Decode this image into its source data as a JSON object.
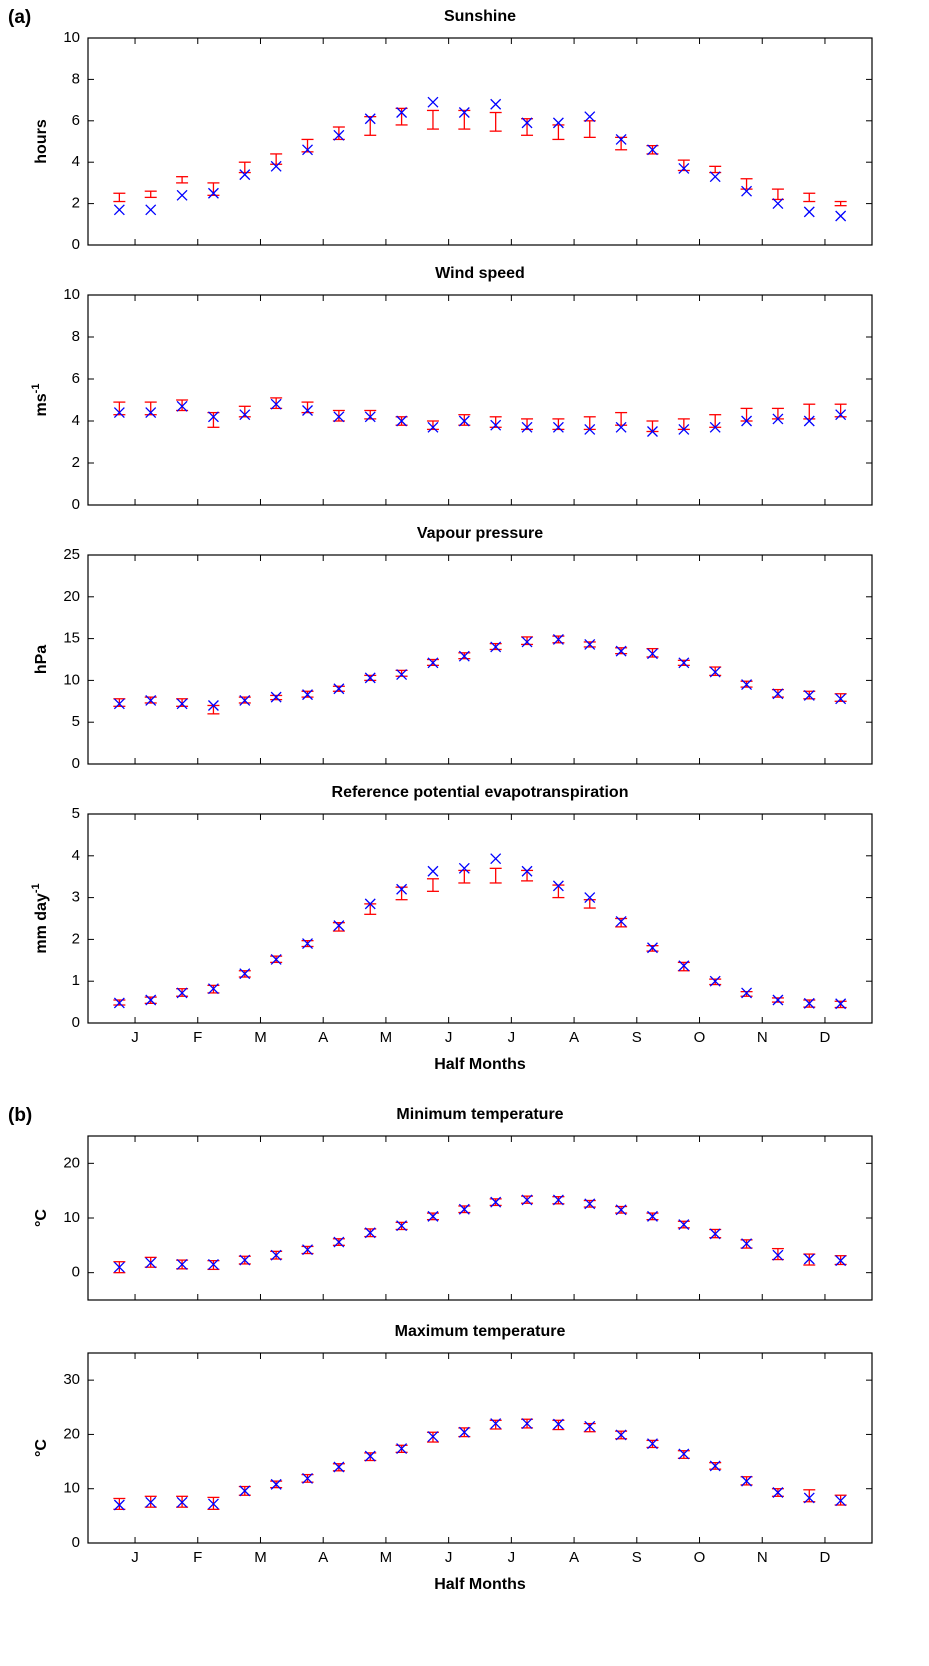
{
  "chart_data": [
    {
      "type": "errorbar",
      "panel_label": "(a)",
      "title": "Sunshine",
      "ylabel": "hours",
      "x": [
        1,
        2,
        3,
        4,
        5,
        6,
        7,
        8,
        9,
        10,
        11,
        12,
        13,
        14,
        15,
        16,
        17,
        18,
        19,
        20,
        21,
        22,
        23,
        24
      ],
      "xlim": [
        0,
        25
      ],
      "xticks": [
        1.5,
        3.5,
        5.5,
        7.5,
        9.5,
        11.5,
        13.5,
        15.5,
        17.5,
        19.5,
        21.5,
        23.5
      ],
      "ylim": [
        0,
        10
      ],
      "yticks": [
        0,
        2,
        4,
        6,
        8,
        10
      ],
      "marker_color": "#0000ff",
      "bar_color": "#ff0000",
      "values": [
        1.7,
        1.7,
        2.4,
        2.5,
        3.4,
        3.8,
        4.6,
        5.3,
        6.1,
        6.4,
        6.9,
        6.4,
        6.8,
        5.9,
        5.9,
        6.2,
        5.1,
        4.6,
        3.7,
        3.3,
        2.6,
        2.0,
        1.6,
        1.4
      ],
      "low": [
        2.1,
        2.3,
        3.0,
        2.4,
        3.5,
        3.9,
        4.5,
        5.1,
        5.3,
        5.8,
        5.6,
        5.6,
        5.5,
        5.3,
        5.1,
        5.2,
        4.6,
        4.4,
        3.6,
        3.5,
        2.7,
        2.2,
        2.1,
        1.9
      ],
      "high": [
        2.5,
        2.6,
        3.3,
        3.0,
        4.0,
        4.4,
        5.1,
        5.7,
        6.2,
        6.6,
        6.5,
        6.5,
        6.4,
        6.1,
        5.8,
        6.0,
        5.2,
        4.8,
        4.1,
        3.8,
        3.2,
        2.7,
        2.5,
        2.1
      ]
    },
    {
      "type": "errorbar",
      "title": "Wind speed",
      "ylabel": "ms",
      "ylabel_sup": "-1",
      "x": [
        1,
        2,
        3,
        4,
        5,
        6,
        7,
        8,
        9,
        10,
        11,
        12,
        13,
        14,
        15,
        16,
        17,
        18,
        19,
        20,
        21,
        22,
        23,
        24
      ],
      "xlim": [
        0,
        25
      ],
      "xticks": [
        1.5,
        3.5,
        5.5,
        7.5,
        9.5,
        11.5,
        13.5,
        15.5,
        17.5,
        19.5,
        21.5,
        23.5
      ],
      "ylim": [
        0,
        10
      ],
      "yticks": [
        0,
        2,
        4,
        6,
        8,
        10
      ],
      "marker_color": "#0000ff",
      "bar_color": "#ff0000",
      "values": [
        4.4,
        4.4,
        4.7,
        4.2,
        4.3,
        4.8,
        4.5,
        4.2,
        4.2,
        4.0,
        3.7,
        4.0,
        3.8,
        3.7,
        3.7,
        3.6,
        3.7,
        3.5,
        3.6,
        3.7,
        4.0,
        4.1,
        4.0,
        4.3
      ],
      "low": [
        4.3,
        4.3,
        4.5,
        3.7,
        4.2,
        4.6,
        4.4,
        4.0,
        4.1,
        3.8,
        3.6,
        3.8,
        3.7,
        3.6,
        3.6,
        3.6,
        3.8,
        3.5,
        3.6,
        3.7,
        4.0,
        4.1,
        4.1,
        4.2
      ],
      "high": [
        4.9,
        4.9,
        5.0,
        4.4,
        4.7,
        5.1,
        4.9,
        4.5,
        4.5,
        4.2,
        4.0,
        4.3,
        4.2,
        4.1,
        4.1,
        4.2,
        4.4,
        4.0,
        4.1,
        4.3,
        4.6,
        4.6,
        4.8,
        4.8
      ]
    },
    {
      "type": "errorbar",
      "title": "Vapour pressure",
      "ylabel": "hPa",
      "x": [
        1,
        2,
        3,
        4,
        5,
        6,
        7,
        8,
        9,
        10,
        11,
        12,
        13,
        14,
        15,
        16,
        17,
        18,
        19,
        20,
        21,
        22,
        23,
        24
      ],
      "xlim": [
        0,
        25
      ],
      "xticks": [
        1.5,
        3.5,
        5.5,
        7.5,
        9.5,
        11.5,
        13.5,
        15.5,
        17.5,
        19.5,
        21.5,
        23.5
      ],
      "ylim": [
        0,
        25
      ],
      "yticks": [
        0,
        5,
        10,
        15,
        20,
        25
      ],
      "marker_color": "#0000ff",
      "bar_color": "#ff0000",
      "values": [
        7.2,
        7.6,
        7.2,
        7.0,
        7.6,
        8.0,
        8.3,
        9.0,
        10.3,
        10.7,
        12.1,
        12.9,
        14.0,
        14.6,
        14.9,
        14.3,
        13.5,
        13.2,
        12.1,
        11.0,
        9.5,
        8.4,
        8.2,
        7.8
      ],
      "low": [
        6.9,
        7.3,
        6.9,
        6.0,
        7.3,
        7.7,
        8.0,
        8.7,
        10.0,
        10.5,
        11.8,
        12.6,
        13.7,
        14.3,
        14.5,
        14.0,
        13.2,
        12.8,
        11.8,
        10.6,
        9.2,
        8.0,
        7.8,
        7.5
      ],
      "high": [
        7.8,
        8.0,
        7.8,
        7.0,
        8.0,
        8.2,
        8.7,
        9.3,
        10.6,
        11.2,
        12.5,
        13.3,
        14.4,
        15.2,
        15.3,
        14.6,
        13.9,
        13.8,
        12.4,
        11.6,
        9.9,
        8.9,
        8.7,
        8.4
      ]
    },
    {
      "type": "errorbar",
      "title": "Reference potential evapotranspiration",
      "ylabel": "mm day",
      "ylabel_sup": "-1",
      "xlabel": "Half Months",
      "x": [
        1,
        2,
        3,
        4,
        5,
        6,
        7,
        8,
        9,
        10,
        11,
        12,
        13,
        14,
        15,
        16,
        17,
        18,
        19,
        20,
        21,
        22,
        23,
        24
      ],
      "xlim": [
        0,
        25
      ],
      "xticks": [
        {
          "value": 1.5,
          "label": "J"
        },
        {
          "value": 3.5,
          "label": "F"
        },
        {
          "value": 5.5,
          "label": "M"
        },
        {
          "value": 7.5,
          "label": "A"
        },
        {
          "value": 9.5,
          "label": "M"
        },
        {
          "value": 11.5,
          "label": "J"
        },
        {
          "value": 13.5,
          "label": "J"
        },
        {
          "value": 15.5,
          "label": "A"
        },
        {
          "value": 17.5,
          "label": "S"
        },
        {
          "value": 19.5,
          "label": "O"
        },
        {
          "value": 21.5,
          "label": "N"
        },
        {
          "value": 23.5,
          "label": "D"
        }
      ],
      "ylim": [
        0,
        5
      ],
      "yticks": [
        0,
        1,
        2,
        3,
        4,
        5
      ],
      "marker_color": "#0000ff",
      "bar_color": "#ff0000",
      "values": [
        0.48,
        0.55,
        0.72,
        0.82,
        1.18,
        1.52,
        1.9,
        2.33,
        2.85,
        3.2,
        3.63,
        3.7,
        3.93,
        3.63,
        3.28,
        3.0,
        2.43,
        1.8,
        1.37,
        1.0,
        0.72,
        0.55,
        0.47,
        0.46
      ],
      "low": [
        0.43,
        0.47,
        0.64,
        0.72,
        1.1,
        1.45,
        1.83,
        2.2,
        2.6,
        2.95,
        3.15,
        3.35,
        3.35,
        3.4,
        3.0,
        2.75,
        2.3,
        1.72,
        1.25,
        0.92,
        0.64,
        0.5,
        0.38,
        0.37
      ],
      "high": [
        0.55,
        0.62,
        0.82,
        0.9,
        1.25,
        1.6,
        1.97,
        2.4,
        2.85,
        3.25,
        3.45,
        3.65,
        3.7,
        3.65,
        3.3,
        2.95,
        2.5,
        1.85,
        1.45,
        1.05,
        0.75,
        0.6,
        0.55,
        0.52
      ]
    },
    {
      "type": "errorbar",
      "panel_label": "(b)",
      "title": "Minimum temperature",
      "ylabel": "°C",
      "x": [
        1,
        2,
        3,
        4,
        5,
        6,
        7,
        8,
        9,
        10,
        11,
        12,
        13,
        14,
        15,
        16,
        17,
        18,
        19,
        20,
        21,
        22,
        23,
        24
      ],
      "xlim": [
        0,
        25
      ],
      "xticks": [
        1.5,
        3.5,
        5.5,
        7.5,
        9.5,
        11.5,
        13.5,
        15.5,
        17.5,
        19.5,
        21.5,
        23.5
      ],
      "ylim": [
        -5,
        25
      ],
      "yticks": [
        0,
        10,
        20
      ],
      "marker_color": "#0000ff",
      "bar_color": "#ff0000",
      "values": [
        1.0,
        1.8,
        1.5,
        1.5,
        2.3,
        3.2,
        4.2,
        5.6,
        7.3,
        8.6,
        10.3,
        11.6,
        12.9,
        13.3,
        13.3,
        12.6,
        11.5,
        10.3,
        8.8,
        7.1,
        5.3,
        3.2,
        2.5,
        2.2
      ],
      "low": [
        0,
        1,
        0.7,
        0.6,
        1.6,
        2.5,
        3.5,
        5,
        6.6,
        7.9,
        9.7,
        11,
        12.3,
        12.7,
        12.6,
        12,
        10.9,
        9.7,
        8.2,
        6.4,
        4.5,
        2.4,
        1.4,
        1.5
      ],
      "high": [
        2,
        2.8,
        2.3,
        2.2,
        3,
        3.9,
        4.8,
        6.2,
        8,
        9.2,
        10.9,
        12.2,
        13.5,
        14,
        13.9,
        13.2,
        12.1,
        10.9,
        9.4,
        7.9,
        6,
        4.4,
        3.4,
        3.1
      ]
    },
    {
      "type": "errorbar",
      "title": "Maximum temperature",
      "ylabel": "°C",
      "xlabel": "Half Months",
      "x": [
        1,
        2,
        3,
        4,
        5,
        6,
        7,
        8,
        9,
        10,
        11,
        12,
        13,
        14,
        15,
        16,
        17,
        18,
        19,
        20,
        21,
        22,
        23,
        24
      ],
      "xlim": [
        0,
        25
      ],
      "xticks": [
        {
          "value": 1.5,
          "label": "J"
        },
        {
          "value": 3.5,
          "label": "F"
        },
        {
          "value": 5.5,
          "label": "M"
        },
        {
          "value": 7.5,
          "label": "A"
        },
        {
          "value": 9.5,
          "label": "M"
        },
        {
          "value": 11.5,
          "label": "J"
        },
        {
          "value": 13.5,
          "label": "J"
        },
        {
          "value": 15.5,
          "label": "A"
        },
        {
          "value": 17.5,
          "label": "S"
        },
        {
          "value": 19.5,
          "label": "O"
        },
        {
          "value": 21.5,
          "label": "N"
        },
        {
          "value": 23.5,
          "label": "D"
        }
      ],
      "ylim": [
        0,
        35
      ],
      "yticks": [
        0,
        10,
        20,
        30
      ],
      "marker_color": "#0000ff",
      "bar_color": "#ff0000",
      "values": [
        7.0,
        7.5,
        7.5,
        7.2,
        9.6,
        10.8,
        11.9,
        14.0,
        16.0,
        17.4,
        19.6,
        20.4,
        22.0,
        22.0,
        21.9,
        21.5,
        19.9,
        18.3,
        16.4,
        14.2,
        11.4,
        9.3,
        8.3,
        7.8
      ],
      "low": [
        6.2,
        6.6,
        6.6,
        6.2,
        8.8,
        10.2,
        11.2,
        13.3,
        15.2,
        16.7,
        18.6,
        19.6,
        21.0,
        21.2,
        20.9,
        20.5,
        19.2,
        17.6,
        15.6,
        13.6,
        10.7,
        8.6,
        7.6,
        7.0
      ],
      "high": [
        8.2,
        8.6,
        8.6,
        8.4,
        10.4,
        11.4,
        12.6,
        14.6,
        16.6,
        18,
        20.4,
        21.2,
        22.6,
        22.8,
        22.6,
        22,
        20.6,
        18.9,
        17,
        14.8,
        12.2,
        10,
        9.8,
        8.8
      ]
    }
  ]
}
